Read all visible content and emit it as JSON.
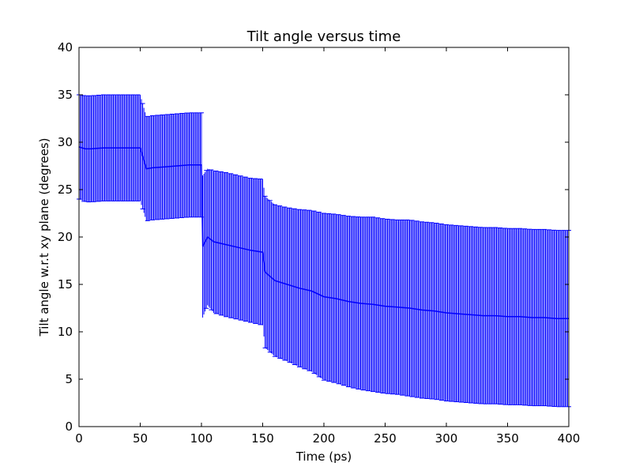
{
  "chart_data": {
    "type": "line",
    "title": "Tilt angle versus time",
    "xlabel": "Time (ps)",
    "ylabel": "Tilt angle w.r.t xy plane (degrees)",
    "xlim": [
      0,
      400
    ],
    "ylim": [
      0,
      40
    ],
    "xticks": [
      "0",
      "50",
      "100",
      "150",
      "200",
      "250",
      "300",
      "350",
      "400"
    ],
    "yticks": [
      "0",
      "5",
      "10",
      "15",
      "20",
      "25",
      "30",
      "35",
      "40"
    ],
    "grid": false,
    "legend": "none",
    "color": "#0000ff",
    "series": [
      {
        "error_bars": true,
        "x": [
          0,
          5,
          10,
          20,
          30,
          40,
          50,
          55,
          60,
          70,
          80,
          90,
          100,
          101,
          105,
          110,
          120,
          130,
          140,
          150,
          152,
          160,
          170,
          180,
          190,
          200,
          210,
          220,
          230,
          240,
          250,
          260,
          270,
          280,
          290,
          300,
          310,
          320,
          330,
          340,
          350,
          360,
          370,
          380,
          390,
          400
        ],
        "y": [
          29.5,
          29.3,
          29.3,
          29.4,
          29.4,
          29.4,
          29.4,
          27.2,
          27.3,
          27.4,
          27.5,
          27.6,
          27.6,
          19.0,
          20.0,
          19.5,
          19.2,
          18.9,
          18.6,
          18.4,
          16.3,
          15.4,
          15.0,
          14.6,
          14.3,
          13.7,
          13.5,
          13.2,
          13.0,
          12.9,
          12.7,
          12.6,
          12.5,
          12.3,
          12.2,
          12.0,
          11.9,
          11.8,
          11.7,
          11.7,
          11.6,
          11.6,
          11.5,
          11.5,
          11.4,
          11.4
        ],
        "yerr": [
          5.5,
          5.6,
          5.6,
          5.6,
          5.6,
          5.6,
          5.6,
          5.5,
          5.5,
          5.5,
          5.5,
          5.5,
          5.5,
          7.5,
          7.2,
          7.5,
          7.6,
          7.6,
          7.6,
          7.7,
          8.0,
          8.0,
          8.1,
          8.3,
          8.5,
          8.8,
          8.9,
          9.0,
          9.1,
          9.2,
          9.2,
          9.2,
          9.3,
          9.3,
          9.3,
          9.3,
          9.3,
          9.3,
          9.3,
          9.3,
          9.3,
          9.3,
          9.3,
          9.3,
          9.3,
          9.3
        ]
      }
    ]
  }
}
